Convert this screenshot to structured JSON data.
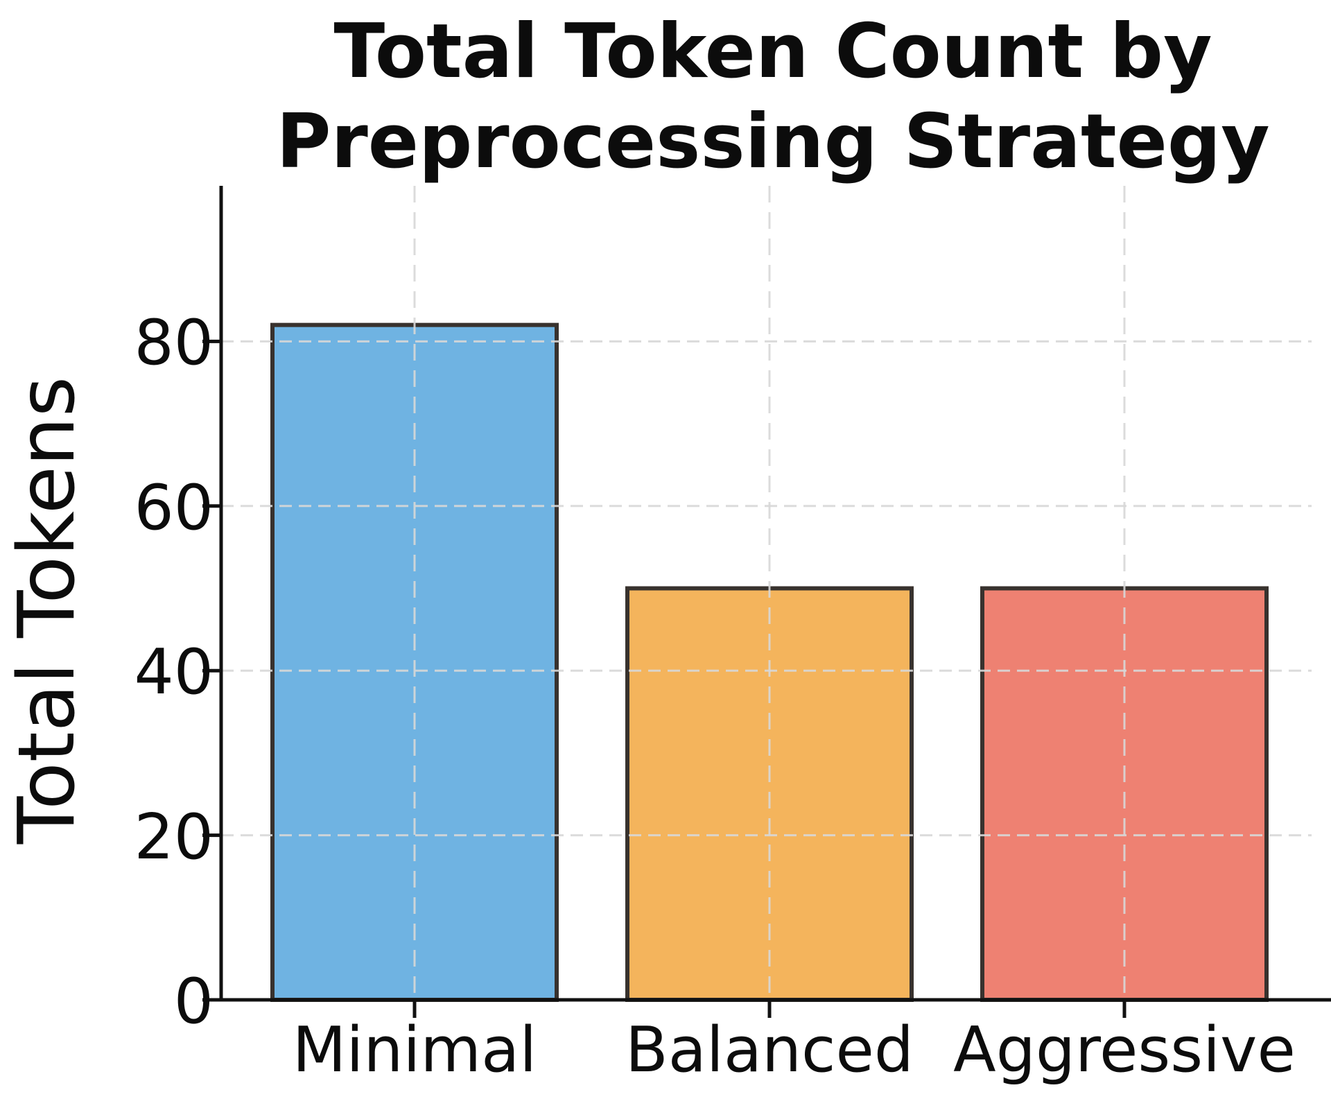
{
  "title": {
    "lines": [
      "Total Token Count by",
      "Preprocessing Strategy"
    ]
  },
  "chart_data": {
    "type": "bar",
    "title": "Total Token Count by Preprocessing Strategy",
    "categories": [
      "Minimal",
      "Balanced",
      "Aggressive"
    ],
    "values": [
      82,
      50,
      50
    ],
    "bar_colors": [
      "#6FB3E2",
      "#F4B45C",
      "#EE8172"
    ],
    "bar_edge_color": "#38322E",
    "xlabel": "",
    "ylabel": "Total Tokens",
    "y_ticks": [
      0,
      20,
      40,
      60,
      80
    ],
    "ylim": [
      0,
      99
    ],
    "grid": {
      "visible": true,
      "axes": "both",
      "style": "dashed",
      "color": "#D8D8D8",
      "drawn_over_bars": true
    },
    "legend_position": "none"
  }
}
